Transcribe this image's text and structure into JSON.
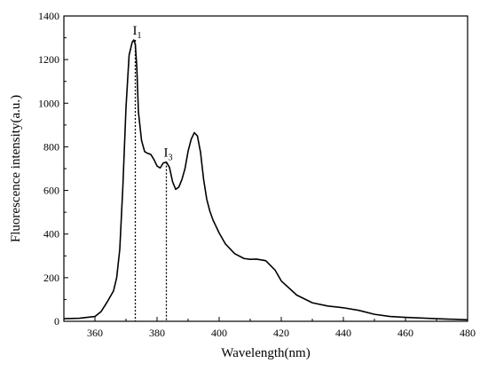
{
  "chart_data": {
    "type": "line",
    "title": "",
    "xlabel": "Wavelength(nm)",
    "ylabel": "Fluorescence intensity(a.u.)",
    "xlim": [
      350,
      480
    ],
    "ylim": [
      0,
      1400
    ],
    "x_ticks": [
      360,
      380,
      400,
      420,
      440,
      460,
      480
    ],
    "y_ticks": [
      0,
      200,
      400,
      600,
      800,
      1000,
      1200,
      1400
    ],
    "grid": false,
    "line_color": "#000000",
    "series": [
      {
        "x": [
          350,
          355,
          360,
          362,
          364,
          366,
          367,
          368,
          369,
          370,
          371,
          372,
          372.5,
          373,
          373.5,
          374,
          375,
          376,
          377,
          378,
          379,
          380,
          381,
          382,
          383,
          384,
          385,
          386,
          387,
          388,
          389,
          390,
          391,
          392,
          393,
          394,
          395,
          396,
          397,
          398,
          400,
          402,
          405,
          408,
          410,
          412,
          415,
          418,
          420,
          425,
          430,
          435,
          440,
          445,
          450,
          455,
          460,
          470,
          480
        ],
        "y": [
          12,
          14,
          22,
          45,
          90,
          140,
          200,
          330,
          620,
          980,
          1220,
          1280,
          1290,
          1270,
          1160,
          960,
          830,
          778,
          770,
          765,
          742,
          712,
          703,
          726,
          730,
          706,
          640,
          605,
          615,
          650,
          700,
          780,
          835,
          865,
          850,
          775,
          650,
          560,
          505,
          465,
          405,
          355,
          310,
          288,
          284,
          285,
          278,
          235,
          185,
          120,
          85,
          70,
          62,
          50,
          32,
          22,
          18,
          12,
          7
        ]
      }
    ],
    "annotations": [
      {
        "label_main": "I",
        "label_sub": "1",
        "x": 373,
        "y": 1290
      },
      {
        "label_main": "I",
        "label_sub": "3",
        "x": 383,
        "y": 730
      }
    ]
  }
}
